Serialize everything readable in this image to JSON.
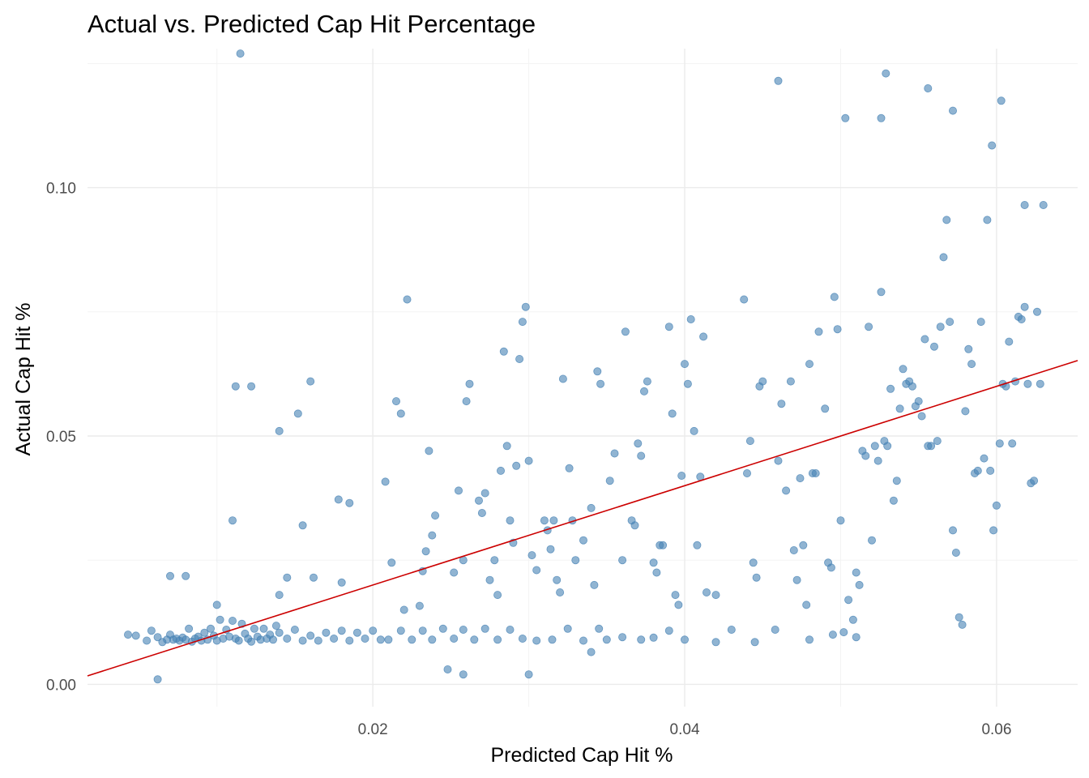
{
  "chart_data": {
    "type": "scatter",
    "title": "Actual vs. Predicted Cap Hit Percentage",
    "xlabel": "Predicted Cap Hit %",
    "ylabel": "Actual Cap Hit %",
    "xlim": [
      0.0017,
      0.0652
    ],
    "ylim": [
      -0.0045,
      0.128
    ],
    "xticks": [
      {
        "value": 0.02,
        "label": "0.02"
      },
      {
        "value": 0.04,
        "label": "0.04"
      },
      {
        "value": 0.06,
        "label": "0.06"
      }
    ],
    "yticks": [
      {
        "value": 0.0,
        "label": "0.00"
      },
      {
        "value": 0.05,
        "label": "0.05"
      },
      {
        "value": 0.1,
        "label": "0.10"
      }
    ],
    "xminor": [
      0.01,
      0.03,
      0.05
    ],
    "yminor": [
      0.025,
      0.075,
      0.125
    ],
    "grid": true,
    "legend": "none",
    "point_color": "#4682b4",
    "line_color": "#cc0000",
    "fit_line": {
      "slope": 1.0,
      "intercept": 0.0
    },
    "points": [
      [
        0.0043,
        0.01
      ],
      [
        0.0048,
        0.0098
      ],
      [
        0.0055,
        0.0088
      ],
      [
        0.0058,
        0.0108
      ],
      [
        0.0062,
        0.0095
      ],
      [
        0.0065,
        0.0085
      ],
      [
        0.0068,
        0.009
      ],
      [
        0.007,
        0.01
      ],
      [
        0.0072,
        0.009
      ],
      [
        0.0074,
        0.0092
      ],
      [
        0.0076,
        0.0088
      ],
      [
        0.0078,
        0.0094
      ],
      [
        0.008,
        0.009
      ],
      [
        0.0082,
        0.0112
      ],
      [
        0.0084,
        0.0086
      ],
      [
        0.0086,
        0.0092
      ],
      [
        0.0088,
        0.0096
      ],
      [
        0.009,
        0.0088
      ],
      [
        0.0092,
        0.0104
      ],
      [
        0.0094,
        0.009
      ],
      [
        0.0096,
        0.0112
      ],
      [
        0.0098,
        0.0098
      ],
      [
        0.01,
        0.0088
      ],
      [
        0.0102,
        0.013
      ],
      [
        0.0104,
        0.0092
      ],
      [
        0.0106,
        0.011
      ],
      [
        0.0108,
        0.0096
      ],
      [
        0.011,
        0.0128
      ],
      [
        0.0112,
        0.0092
      ],
      [
        0.0114,
        0.0088
      ],
      [
        0.0116,
        0.0122
      ],
      [
        0.0118,
        0.0102
      ],
      [
        0.012,
        0.0092
      ],
      [
        0.0122,
        0.0086
      ],
      [
        0.0124,
        0.0112
      ],
      [
        0.0126,
        0.0096
      ],
      [
        0.0128,
        0.009
      ],
      [
        0.013,
        0.0112
      ],
      [
        0.0132,
        0.0092
      ],
      [
        0.0134,
        0.01
      ],
      [
        0.0136,
        0.009
      ],
      [
        0.0138,
        0.0118
      ],
      [
        0.014,
        0.0104
      ],
      [
        0.0145,
        0.0092
      ],
      [
        0.015,
        0.011
      ],
      [
        0.0155,
        0.0088
      ],
      [
        0.016,
        0.0098
      ],
      [
        0.0165,
        0.0088
      ],
      [
        0.017,
        0.0104
      ],
      [
        0.0175,
        0.0092
      ],
      [
        0.018,
        0.0108
      ],
      [
        0.0185,
        0.0088
      ],
      [
        0.019,
        0.0104
      ],
      [
        0.0195,
        0.0092
      ],
      [
        0.02,
        0.0108
      ],
      [
        0.0205,
        0.009
      ],
      [
        0.021,
        0.009
      ],
      [
        0.0218,
        0.0108
      ],
      [
        0.0225,
        0.009
      ],
      [
        0.0232,
        0.0108
      ],
      [
        0.0238,
        0.009
      ],
      [
        0.0245,
        0.0112
      ],
      [
        0.0252,
        0.0092
      ],
      [
        0.0258,
        0.011
      ],
      [
        0.0265,
        0.009
      ],
      [
        0.0272,
        0.0112
      ],
      [
        0.028,
        0.009
      ],
      [
        0.0288,
        0.011
      ],
      [
        0.0296,
        0.0092
      ],
      [
        0.0305,
        0.0088
      ],
      [
        0.0315,
        0.009
      ],
      [
        0.0325,
        0.0112
      ],
      [
        0.0335,
        0.0088
      ],
      [
        0.0345,
        0.0112
      ],
      [
        0.038,
        0.0094
      ],
      [
        0.039,
        0.0108
      ],
      [
        0.007,
        0.0218
      ],
      [
        0.008,
        0.0218
      ],
      [
        0.01,
        0.016
      ],
      [
        0.011,
        0.033
      ],
      [
        0.0112,
        0.06
      ],
      [
        0.0115,
        0.127
      ],
      [
        0.0122,
        0.06
      ],
      [
        0.014,
        0.051
      ],
      [
        0.0145,
        0.0215
      ],
      [
        0.0152,
        0.0545
      ],
      [
        0.0155,
        0.032
      ],
      [
        0.016,
        0.061
      ],
      [
        0.0178,
        0.0372
      ],
      [
        0.0185,
        0.0365
      ],
      [
        0.018,
        0.0205
      ],
      [
        0.0162,
        0.0215
      ],
      [
        0.014,
        0.018
      ],
      [
        0.0062,
        0.001
      ],
      [
        0.0208,
        0.0408
      ],
      [
        0.0212,
        0.0245
      ],
      [
        0.0215,
        0.057
      ],
      [
        0.0218,
        0.0545
      ],
      [
        0.0222,
        0.0775
      ],
      [
        0.022,
        0.015
      ],
      [
        0.023,
        0.0158
      ],
      [
        0.0232,
        0.0228
      ],
      [
        0.0234,
        0.0268
      ],
      [
        0.0236,
        0.047
      ],
      [
        0.0238,
        0.03
      ],
      [
        0.024,
        0.034
      ],
      [
        0.0252,
        0.0225
      ],
      [
        0.0255,
        0.039
      ],
      [
        0.0258,
        0.025
      ],
      [
        0.026,
        0.057
      ],
      [
        0.0262,
        0.0605
      ],
      [
        0.0268,
        0.037
      ],
      [
        0.027,
        0.0345
      ],
      [
        0.0272,
        0.0385
      ],
      [
        0.0275,
        0.021
      ],
      [
        0.0278,
        0.025
      ],
      [
        0.028,
        0.018
      ],
      [
        0.0282,
        0.043
      ],
      [
        0.0284,
        0.067
      ],
      [
        0.0286,
        0.048
      ],
      [
        0.0288,
        0.033
      ],
      [
        0.029,
        0.0285
      ],
      [
        0.0292,
        0.044
      ],
      [
        0.0294,
        0.0655
      ],
      [
        0.0296,
        0.073
      ],
      [
        0.0298,
        0.076
      ],
      [
        0.03,
        0.045
      ],
      [
        0.0302,
        0.026
      ],
      [
        0.0305,
        0.023
      ],
      [
        0.031,
        0.033
      ],
      [
        0.0312,
        0.031
      ],
      [
        0.0314,
        0.0272
      ],
      [
        0.0316,
        0.033
      ],
      [
        0.0318,
        0.021
      ],
      [
        0.032,
        0.0185
      ],
      [
        0.0322,
        0.0615
      ],
      [
        0.0326,
        0.0435
      ],
      [
        0.0328,
        0.033
      ],
      [
        0.033,
        0.025
      ],
      [
        0.0335,
        0.029
      ],
      [
        0.034,
        0.0355
      ],
      [
        0.0342,
        0.02
      ],
      [
        0.0344,
        0.063
      ],
      [
        0.0346,
        0.0605
      ],
      [
        0.0352,
        0.041
      ],
      [
        0.0355,
        0.0465
      ],
      [
        0.036,
        0.025
      ],
      [
        0.0362,
        0.071
      ],
      [
        0.0366,
        0.033
      ],
      [
        0.0368,
        0.032
      ],
      [
        0.037,
        0.0485
      ],
      [
        0.0372,
        0.046
      ],
      [
        0.0374,
        0.059
      ],
      [
        0.0376,
        0.061
      ],
      [
        0.038,
        0.0245
      ],
      [
        0.0382,
        0.0225
      ],
      [
        0.0384,
        0.028
      ],
      [
        0.0386,
        0.028
      ],
      [
        0.039,
        0.072
      ],
      [
        0.0392,
        0.0545
      ],
      [
        0.0394,
        0.018
      ],
      [
        0.0396,
        0.016
      ],
      [
        0.0398,
        0.042
      ],
      [
        0.04,
        0.0645
      ],
      [
        0.0402,
        0.0605
      ],
      [
        0.0404,
        0.0735
      ],
      [
        0.0406,
        0.051
      ],
      [
        0.0408,
        0.028
      ],
      [
        0.041,
        0.0418
      ],
      [
        0.0412,
        0.07
      ],
      [
        0.0414,
        0.0185
      ],
      [
        0.042,
        0.018
      ],
      [
        0.0438,
        0.0775
      ],
      [
        0.044,
        0.0425
      ],
      [
        0.0442,
        0.049
      ],
      [
        0.0444,
        0.0245
      ],
      [
        0.0446,
        0.0215
      ],
      [
        0.0448,
        0.06
      ],
      [
        0.045,
        0.061
      ],
      [
        0.046,
        0.045
      ],
      [
        0.0462,
        0.0565
      ],
      [
        0.0465,
        0.039
      ],
      [
        0.0468,
        0.061
      ],
      [
        0.047,
        0.027
      ],
      [
        0.0472,
        0.021
      ],
      [
        0.0474,
        0.0415
      ],
      [
        0.0476,
        0.028
      ],
      [
        0.0478,
        0.016
      ],
      [
        0.048,
        0.0645
      ],
      [
        0.0482,
        0.0425
      ],
      [
        0.0484,
        0.0425
      ],
      [
        0.0486,
        0.071
      ],
      [
        0.049,
        0.0555
      ],
      [
        0.0492,
        0.0245
      ],
      [
        0.0494,
        0.0235
      ],
      [
        0.0496,
        0.078
      ],
      [
        0.0498,
        0.0715
      ],
      [
        0.05,
        0.033
      ],
      [
        0.0502,
        0.0105
      ],
      [
        0.0505,
        0.017
      ],
      [
        0.0508,
        0.013
      ],
      [
        0.051,
        0.0225
      ],
      [
        0.0512,
        0.02
      ],
      [
        0.0514,
        0.047
      ],
      [
        0.0516,
        0.046
      ],
      [
        0.0518,
        0.072
      ],
      [
        0.052,
        0.029
      ],
      [
        0.0522,
        0.048
      ],
      [
        0.0524,
        0.045
      ],
      [
        0.0526,
        0.079
      ],
      [
        0.0528,
        0.049
      ],
      [
        0.053,
        0.048
      ],
      [
        0.0532,
        0.0595
      ],
      [
        0.0534,
        0.037
      ],
      [
        0.0536,
        0.041
      ],
      [
        0.0538,
        0.0555
      ],
      [
        0.054,
        0.0635
      ],
      [
        0.0542,
        0.0605
      ],
      [
        0.0544,
        0.061
      ],
      [
        0.0546,
        0.06
      ],
      [
        0.0548,
        0.056
      ],
      [
        0.055,
        0.057
      ],
      [
        0.0552,
        0.054
      ],
      [
        0.0554,
        0.0695
      ],
      [
        0.0556,
        0.048
      ],
      [
        0.0558,
        0.048
      ],
      [
        0.056,
        0.068
      ],
      [
        0.0562,
        0.049
      ],
      [
        0.0564,
        0.072
      ],
      [
        0.0566,
        0.086
      ],
      [
        0.0568,
        0.0935
      ],
      [
        0.057,
        0.073
      ],
      [
        0.0572,
        0.031
      ],
      [
        0.0574,
        0.0265
      ],
      [
        0.0576,
        0.0135
      ],
      [
        0.0578,
        0.012
      ],
      [
        0.058,
        0.055
      ],
      [
        0.0582,
        0.0675
      ],
      [
        0.0584,
        0.0645
      ],
      [
        0.0586,
        0.0425
      ],
      [
        0.0588,
        0.043
      ],
      [
        0.059,
        0.073
      ],
      [
        0.0592,
        0.0455
      ],
      [
        0.0594,
        0.0935
      ],
      [
        0.0596,
        0.043
      ],
      [
        0.0598,
        0.031
      ],
      [
        0.06,
        0.036
      ],
      [
        0.0602,
        0.0485
      ],
      [
        0.0604,
        0.0605
      ],
      [
        0.0606,
        0.06
      ],
      [
        0.0608,
        0.069
      ],
      [
        0.061,
        0.0485
      ],
      [
        0.0612,
        0.061
      ],
      [
        0.0614,
        0.074
      ],
      [
        0.0616,
        0.0735
      ],
      [
        0.0618,
        0.076
      ],
      [
        0.062,
        0.0605
      ],
      [
        0.0622,
        0.0405
      ],
      [
        0.0624,
        0.041
      ],
      [
        0.0626,
        0.075
      ],
      [
        0.0628,
        0.0605
      ],
      [
        0.063,
        0.0965
      ],
      [
        0.046,
        0.1215
      ],
      [
        0.0503,
        0.114
      ],
      [
        0.0526,
        0.114
      ],
      [
        0.0529,
        0.123
      ],
      [
        0.0556,
        0.12
      ],
      [
        0.0572,
        0.1155
      ],
      [
        0.0597,
        0.1085
      ],
      [
        0.0603,
        0.1175
      ],
      [
        0.0618,
        0.0965
      ],
      [
        0.0248,
        0.003
      ],
      [
        0.0258,
        0.002
      ],
      [
        0.03,
        0.002
      ],
      [
        0.034,
        0.0065
      ],
      [
        0.0445,
        0.0085
      ],
      [
        0.0458,
        0.011
      ],
      [
        0.048,
        0.009
      ],
      [
        0.0495,
        0.01
      ],
      [
        0.051,
        0.0095
      ],
      [
        0.042,
        0.0085
      ],
      [
        0.043,
        0.011
      ],
      [
        0.04,
        0.009
      ],
      [
        0.0372,
        0.009
      ],
      [
        0.036,
        0.0095
      ],
      [
        0.035,
        0.009
      ]
    ]
  }
}
